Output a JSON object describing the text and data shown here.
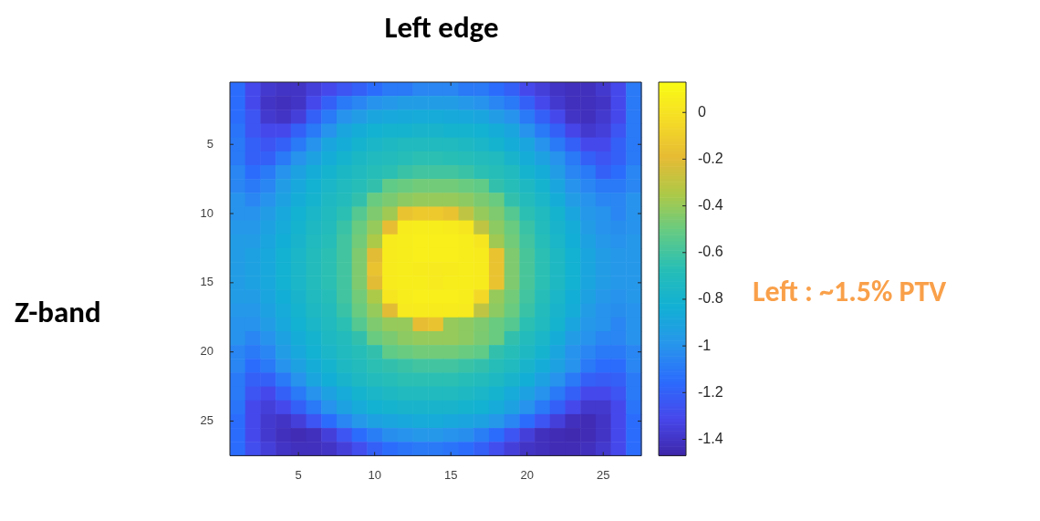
{
  "chart_data": {
    "type": "heatmap",
    "title": "Left edge",
    "ylabel": "Z-band",
    "annotations": [
      "Left : ~1.5% PTV"
    ],
    "categories": [
      null,
      null,
      null,
      null,
      "5",
      null,
      null,
      null,
      null,
      "10",
      null,
      null,
      null,
      null,
      "15",
      null,
      null,
      null,
      null,
      "20",
      null,
      null,
      null,
      null,
      "25",
      null,
      null
    ],
    "y_categories": [
      null,
      null,
      null,
      null,
      "5",
      null,
      null,
      null,
      null,
      "10",
      null,
      null,
      null,
      null,
      "15",
      null,
      null,
      null,
      null,
      "20",
      null,
      null,
      null,
      null,
      "25",
      null,
      null
    ],
    "clim": [
      -1.47,
      0.13
    ],
    "cticks": [
      0,
      -0.2,
      -0.4,
      -0.6,
      -0.8,
      -1,
      -1.2,
      -1.4
    ],
    "cells": [
      [
        -1.15,
        -1.3,
        -1.38,
        -1.4,
        -1.4,
        -1.35,
        -1.3,
        -1.25,
        -1.2,
        -1.15,
        -1.1,
        -1.1,
        -1.05,
        -1.05,
        -1.05,
        -1.1,
        -1.1,
        -1.15,
        -1.2,
        -1.3,
        -1.35,
        -1.4,
        -1.42,
        -1.42,
        -1.38,
        -1.3,
        -1.1
      ],
      [
        -1.15,
        -1.3,
        -1.4,
        -1.42,
        -1.4,
        -1.3,
        -1.2,
        -1.1,
        -1.05,
        -1.0,
        -0.98,
        -0.95,
        -0.95,
        -0.95,
        -0.95,
        -0.98,
        -1.0,
        -1.05,
        -1.1,
        -1.2,
        -1.3,
        -1.38,
        -1.42,
        -1.42,
        -1.4,
        -1.3,
        -1.1
      ],
      [
        -1.15,
        -1.25,
        -1.38,
        -1.4,
        -1.35,
        -1.2,
        -1.1,
        -1.0,
        -0.95,
        -0.9,
        -0.88,
        -0.87,
        -0.86,
        -0.86,
        -0.87,
        -0.88,
        -0.9,
        -0.95,
        -1.0,
        -1.1,
        -1.2,
        -1.3,
        -1.4,
        -1.42,
        -1.38,
        -1.3,
        -1.1
      ],
      [
        -1.12,
        -1.25,
        -1.3,
        -1.3,
        -1.2,
        -1.1,
        -1.0,
        -0.9,
        -0.85,
        -0.82,
        -0.8,
        -0.8,
        -0.78,
        -0.78,
        -0.8,
        -0.8,
        -0.82,
        -0.85,
        -0.9,
        -1.0,
        -1.1,
        -1.2,
        -1.32,
        -1.38,
        -1.35,
        -1.25,
        -1.1
      ],
      [
        -1.1,
        -1.2,
        -1.25,
        -1.2,
        -1.1,
        -1.0,
        -0.9,
        -0.85,
        -0.8,
        -0.76,
        -0.74,
        -0.72,
        -0.72,
        -0.72,
        -0.72,
        -0.74,
        -0.76,
        -0.8,
        -0.85,
        -0.9,
        -1.0,
        -1.1,
        -1.2,
        -1.3,
        -1.3,
        -1.2,
        -1.1
      ],
      [
        -1.1,
        -1.2,
        -1.2,
        -1.1,
        -1.0,
        -0.92,
        -0.85,
        -0.8,
        -0.75,
        -0.72,
        -0.7,
        -0.68,
        -0.66,
        -0.66,
        -0.67,
        -0.68,
        -0.7,
        -0.72,
        -0.78,
        -0.85,
        -0.92,
        -1.0,
        -1.1,
        -1.2,
        -1.25,
        -1.2,
        -1.1
      ],
      [
        -1.05,
        -1.15,
        -1.1,
        -1.0,
        -0.92,
        -0.85,
        -0.8,
        -0.75,
        -0.72,
        -0.68,
        -0.66,
        -0.62,
        -0.6,
        -0.6,
        -0.6,
        -0.62,
        -0.66,
        -0.68,
        -0.72,
        -0.8,
        -0.85,
        -0.95,
        -1.05,
        -1.1,
        -1.2,
        -1.15,
        -1.05
      ],
      [
        -1.05,
        -1.1,
        -1.05,
        -0.95,
        -0.88,
        -0.82,
        -0.76,
        -0.72,
        -0.68,
        -0.64,
        -0.52,
        -0.5,
        -0.48,
        -0.48,
        -0.48,
        -0.5,
        -0.52,
        -0.64,
        -0.68,
        -0.74,
        -0.8,
        -0.9,
        -1.0,
        -1.05,
        -1.1,
        -1.1,
        -1.05
      ],
      [
        -1.0,
        -1.05,
        -1.0,
        -0.92,
        -0.85,
        -0.8,
        -0.74,
        -0.7,
        -0.64,
        -0.5,
        -0.46,
        -0.42,
        -0.4,
        -0.4,
        -0.4,
        -0.42,
        -0.46,
        -0.5,
        -0.64,
        -0.7,
        -0.76,
        -0.85,
        -0.95,
        -1.0,
        -1.05,
        -1.05,
        -1.0
      ],
      [
        -1.0,
        -1.0,
        -0.95,
        -0.88,
        -0.82,
        -0.76,
        -0.72,
        -0.66,
        -0.55,
        -0.45,
        -0.38,
        -0.15,
        -0.12,
        -0.12,
        -0.15,
        -0.3,
        -0.4,
        -0.45,
        -0.55,
        -0.66,
        -0.72,
        -0.8,
        -0.9,
        -0.98,
        -1.0,
        -1.05,
        -1.0
      ],
      [
        -0.98,
        -0.98,
        -0.92,
        -0.86,
        -0.8,
        -0.74,
        -0.7,
        -0.62,
        -0.5,
        -0.4,
        -0.18,
        0.05,
        0.06,
        0.06,
        0.05,
        0.02,
        -0.3,
        -0.42,
        -0.5,
        -0.62,
        -0.7,
        -0.78,
        -0.85,
        -0.95,
        -1.0,
        -1.02,
        -1.0
      ],
      [
        -0.95,
        -0.95,
        -0.9,
        -0.84,
        -0.78,
        -0.72,
        -0.68,
        -0.6,
        -0.48,
        -0.35,
        0.05,
        0.06,
        0.07,
        0.07,
        0.07,
        0.06,
        0.02,
        -0.38,
        -0.48,
        -0.6,
        -0.68,
        -0.76,
        -0.84,
        -0.92,
        -0.98,
        -1.0,
        -0.98
      ],
      [
        -0.95,
        -0.92,
        -0.88,
        -0.82,
        -0.76,
        -0.7,
        -0.66,
        -0.6,
        -0.45,
        -0.2,
        0.05,
        0.06,
        0.07,
        0.07,
        0.07,
        0.06,
        0.05,
        -0.15,
        -0.45,
        -0.58,
        -0.66,
        -0.74,
        -0.82,
        -0.9,
        -0.95,
        -0.98,
        -0.98
      ],
      [
        -0.95,
        -0.92,
        -0.88,
        -0.82,
        -0.76,
        -0.7,
        -0.66,
        -0.6,
        -0.45,
        -0.15,
        0.05,
        0.06,
        0.05,
        0.04,
        0.05,
        0.06,
        0.05,
        -0.15,
        -0.45,
        -0.58,
        -0.66,
        -0.74,
        -0.82,
        -0.9,
        -0.95,
        -0.98,
        -0.98
      ],
      [
        -0.95,
        -0.92,
        -0.88,
        -0.82,
        -0.76,
        -0.7,
        -0.66,
        -0.6,
        -0.45,
        -0.2,
        0.05,
        0.06,
        0.06,
        0.04,
        0.06,
        0.06,
        0.05,
        -0.15,
        -0.45,
        -0.58,
        -0.66,
        -0.74,
        -0.82,
        -0.9,
        -0.95,
        -0.98,
        -0.98
      ],
      [
        -0.95,
        -0.95,
        -0.9,
        -0.84,
        -0.78,
        -0.72,
        -0.68,
        -0.6,
        -0.48,
        -0.35,
        0.02,
        0.06,
        0.07,
        0.07,
        0.07,
        0.06,
        -0.05,
        -0.4,
        -0.48,
        -0.6,
        -0.68,
        -0.76,
        -0.84,
        -0.92,
        -0.98,
        -1.0,
        -0.98
      ],
      [
        -0.98,
        -0.98,
        -0.92,
        -0.86,
        -0.8,
        -0.74,
        -0.7,
        -0.62,
        -0.5,
        -0.4,
        -0.2,
        0.04,
        0.05,
        0.05,
        0.05,
        0.04,
        -0.3,
        -0.42,
        -0.5,
        -0.62,
        -0.7,
        -0.78,
        -0.85,
        -0.95,
        -1.0,
        -1.02,
        -1.0
      ],
      [
        -1.0,
        -1.0,
        -0.95,
        -0.88,
        -0.82,
        -0.76,
        -0.72,
        -0.66,
        -0.55,
        -0.45,
        -0.4,
        -0.4,
        -0.18,
        -0.15,
        -0.4,
        -0.42,
        -0.45,
        -0.5,
        -0.55,
        -0.66,
        -0.72,
        -0.8,
        -0.9,
        -0.98,
        -1.0,
        -1.05,
        -1.0
      ],
      [
        -1.0,
        -1.05,
        -1.0,
        -0.92,
        -0.85,
        -0.8,
        -0.74,
        -0.7,
        -0.64,
        -0.5,
        -0.46,
        -0.42,
        -0.4,
        -0.4,
        -0.4,
        -0.42,
        -0.46,
        -0.5,
        -0.64,
        -0.7,
        -0.76,
        -0.85,
        -0.95,
        -1.0,
        -1.05,
        -1.05,
        -1.0
      ],
      [
        -1.05,
        -1.1,
        -1.05,
        -0.95,
        -0.88,
        -0.82,
        -0.76,
        -0.72,
        -0.68,
        -0.64,
        -0.52,
        -0.5,
        -0.48,
        -0.48,
        -0.48,
        -0.5,
        -0.52,
        -0.64,
        -0.68,
        -0.74,
        -0.8,
        -0.9,
        -1.0,
        -1.05,
        -1.1,
        -1.1,
        -1.05
      ],
      [
        -1.05,
        -1.15,
        -1.1,
        -1.0,
        -0.92,
        -0.85,
        -0.8,
        -0.74,
        -0.7,
        -0.66,
        -0.64,
        -0.62,
        -0.6,
        -0.6,
        -0.6,
        -0.62,
        -0.64,
        -0.68,
        -0.72,
        -0.78,
        -0.85,
        -0.92,
        -1.0,
        -1.1,
        -1.15,
        -1.15,
        -1.05
      ],
      [
        -1.1,
        -1.2,
        -1.2,
        -1.1,
        -1.0,
        -0.9,
        -0.84,
        -0.78,
        -0.74,
        -0.7,
        -0.68,
        -0.66,
        -0.66,
        -0.66,
        -0.66,
        -0.68,
        -0.7,
        -0.74,
        -0.78,
        -0.84,
        -0.92,
        -1.0,
        -1.1,
        -1.2,
        -1.22,
        -1.2,
        -1.1
      ],
      [
        -1.1,
        -1.25,
        -1.3,
        -1.2,
        -1.1,
        -1.0,
        -0.92,
        -0.86,
        -0.8,
        -0.76,
        -0.74,
        -0.72,
        -0.72,
        -0.72,
        -0.72,
        -0.74,
        -0.76,
        -0.8,
        -0.86,
        -0.92,
        -1.0,
        -1.1,
        -1.2,
        -1.3,
        -1.3,
        -1.25,
        -1.1
      ],
      [
        -1.12,
        -1.3,
        -1.35,
        -1.3,
        -1.2,
        -1.1,
        -1.0,
        -0.92,
        -0.86,
        -0.82,
        -0.8,
        -0.78,
        -0.78,
        -0.78,
        -0.78,
        -0.8,
        -0.82,
        -0.86,
        -0.92,
        -1.0,
        -1.1,
        -1.2,
        -1.3,
        -1.38,
        -1.38,
        -1.3,
        -1.12
      ],
      [
        -1.15,
        -1.3,
        -1.38,
        -1.4,
        -1.35,
        -1.25,
        -1.15,
        -1.05,
        -0.98,
        -0.92,
        -0.9,
        -0.88,
        -0.86,
        -0.86,
        -0.88,
        -0.9,
        -0.92,
        -0.98,
        -1.05,
        -1.15,
        -1.25,
        -1.35,
        -1.42,
        -1.44,
        -1.4,
        -1.3,
        -1.15
      ],
      [
        -1.15,
        -1.3,
        -1.38,
        -1.42,
        -1.44,
        -1.42,
        -1.35,
        -1.25,
        -1.15,
        -1.08,
        -1.02,
        -1.0,
        -0.98,
        -0.98,
        -1.0,
        -1.02,
        -1.08,
        -1.15,
        -1.25,
        -1.35,
        -1.42,
        -1.44,
        -1.45,
        -1.44,
        -1.4,
        -1.3,
        -1.15
      ],
      [
        -1.15,
        -1.28,
        -1.35,
        -1.4,
        -1.42,
        -1.42,
        -1.4,
        -1.35,
        -1.28,
        -1.2,
        -1.15,
        -1.12,
        -1.1,
        -1.1,
        -1.12,
        -1.15,
        -1.2,
        -1.28,
        -1.35,
        -1.4,
        -1.42,
        -1.44,
        -1.44,
        -1.42,
        -1.38,
        -1.3,
        -1.15
      ]
    ]
  }
}
